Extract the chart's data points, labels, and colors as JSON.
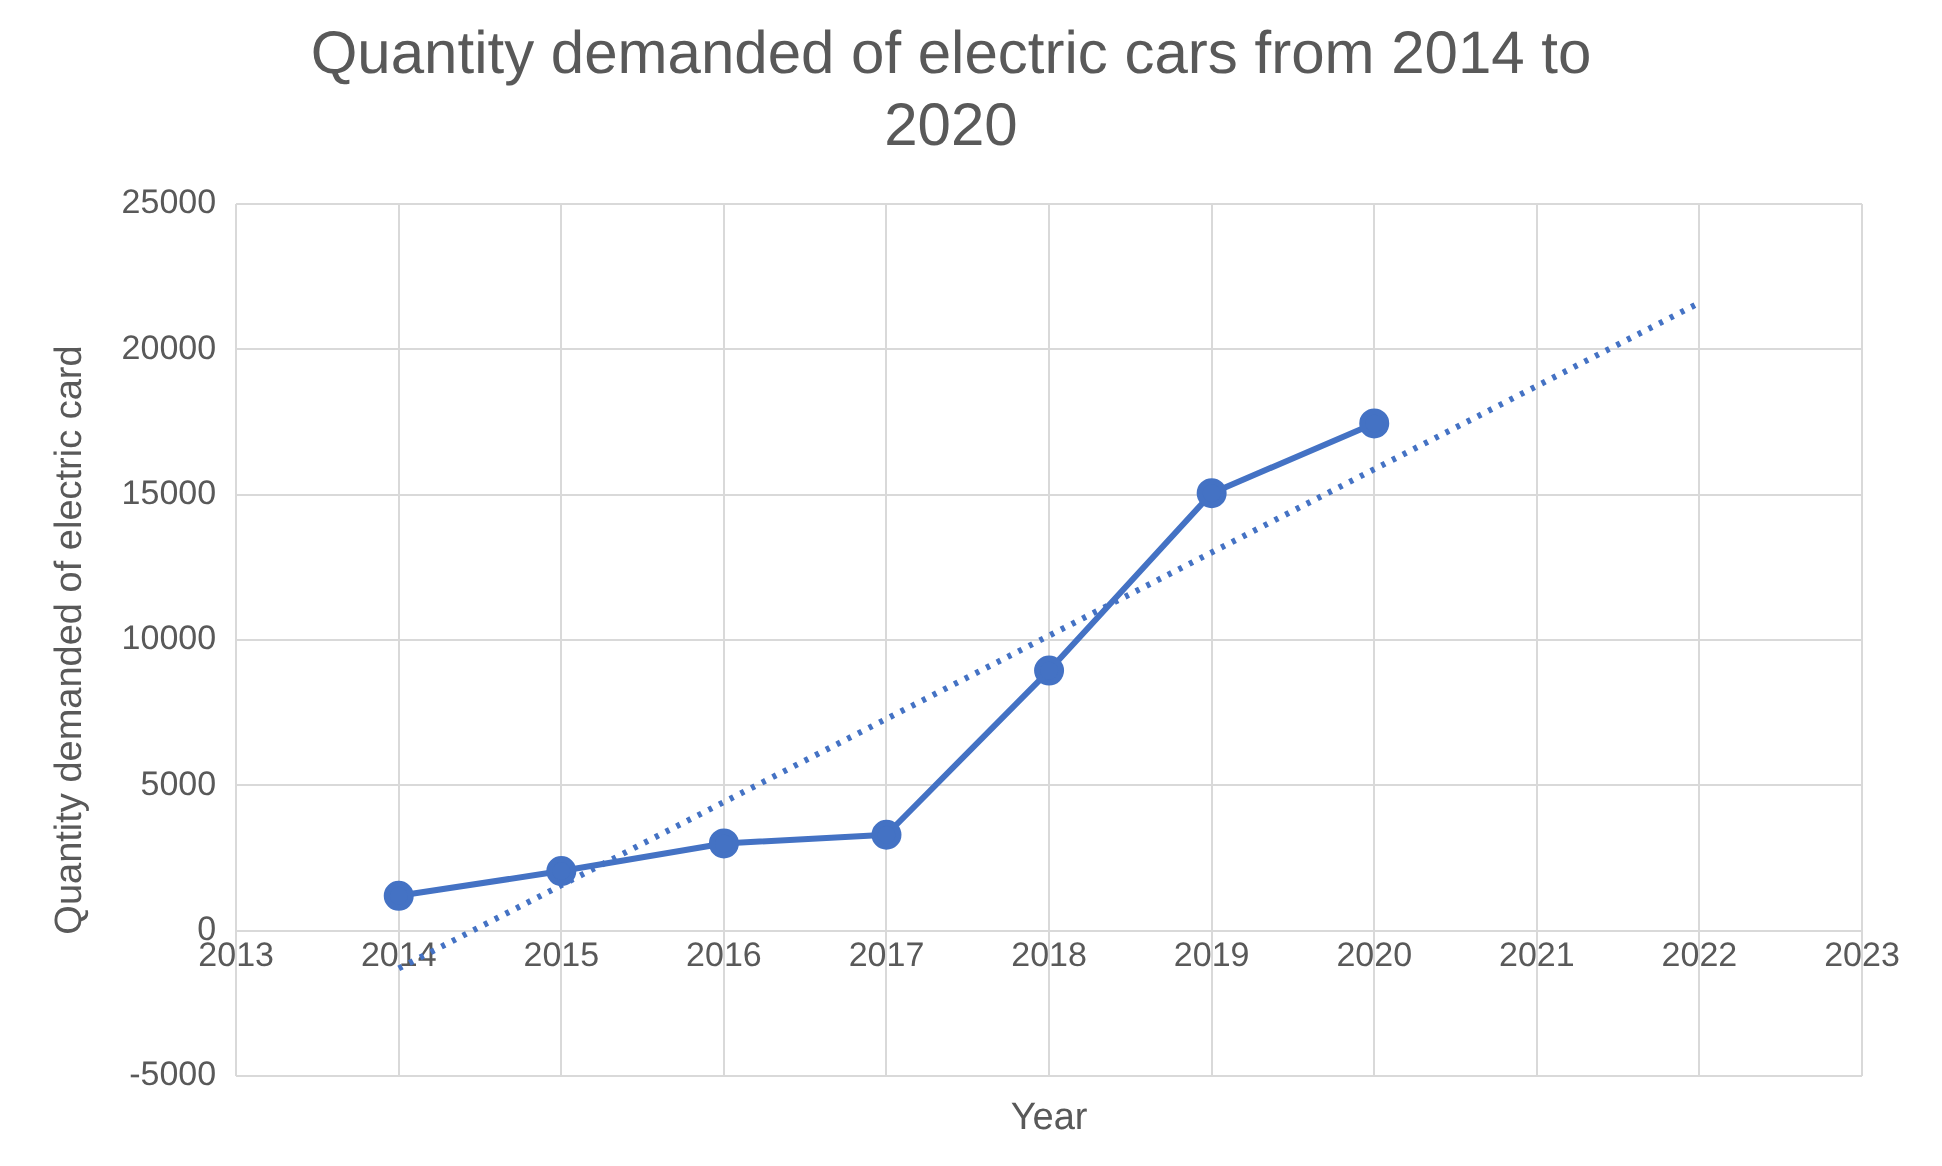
{
  "chart_data": {
    "type": "line",
    "title": "Quantity demanded of electric cars from 2014 to 2020",
    "xlabel": "Year",
    "ylabel": "Quantity demanded of electric card",
    "x": [
      2014,
      2015,
      2016,
      2017,
      2018,
      2019,
      2020
    ],
    "series": [
      {
        "color": "#4472c4",
        "values": [
          1200,
          2050,
          3000,
          3300,
          8950,
          15050,
          17450
        ],
        "marker": "circle",
        "line_style": "solid"
      },
      {
        "type": "line",
        "color": "#4472c4",
        "x": [
          2014,
          2022
        ],
        "values": [
          -1300,
          21600
        ],
        "marker": "none",
        "line_style": "dotted"
      }
    ],
    "xlim": [
      2013,
      2023
    ],
    "xticks": [
      2013,
      2014,
      2015,
      2016,
      2017,
      2018,
      2019,
      2020,
      2021,
      2022,
      2023
    ],
    "ylim": [
      -5000,
      25000
    ],
    "yticks": [
      -5000,
      0,
      5000,
      10000,
      15000,
      20000,
      25000
    ],
    "grid": true,
    "legend": false
  }
}
